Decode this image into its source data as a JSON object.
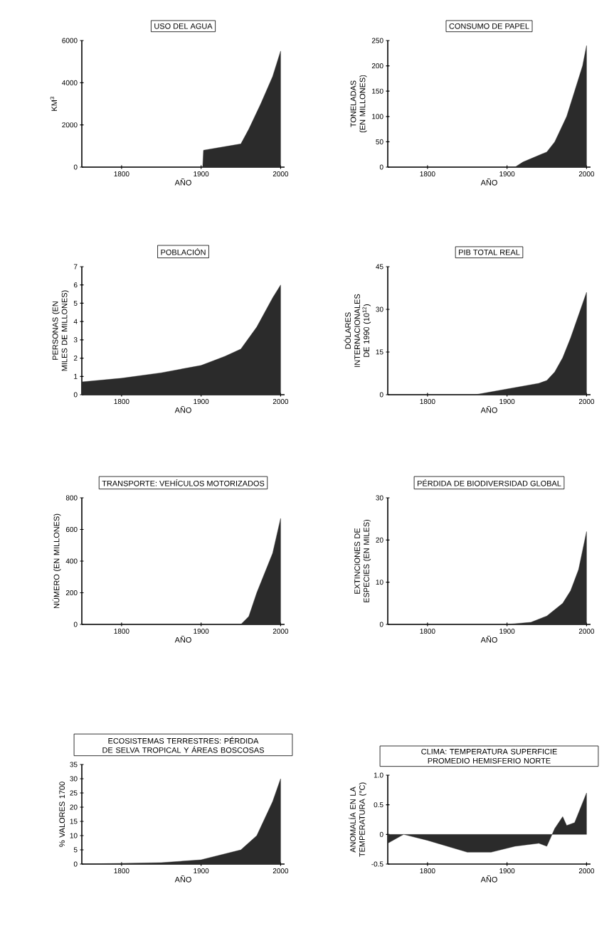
{
  "chart_data": [
    {
      "type": "area",
      "title": "USO DEL AGUA",
      "xlabel": "AÑO",
      "ylabel": "KM$^{3}$",
      "color": "#2b2b2b",
      "xlim": [
        1750,
        2005
      ],
      "ylim": [
        0,
        6000
      ],
      "xticks": [
        1800,
        1900,
        2000
      ],
      "yticks": [
        0,
        2000,
        4000,
        6000
      ],
      "x": [
        1750,
        1902,
        1903,
        1950,
        1960,
        1975,
        1990,
        2000
      ],
      "values": [
        0,
        0,
        800,
        1100,
        1800,
        3000,
        4300,
        5500
      ]
    },
    {
      "type": "area",
      "title": "CONSUMO DE PAPEL",
      "xlabel": "AÑO",
      "ylabel": "TONELADAS (EN MILLONES)",
      "color": "#2b2b2b",
      "xlim": [
        1750,
        2005
      ],
      "ylim": [
        0,
        250
      ],
      "xticks": [
        1800,
        1900,
        2000
      ],
      "yticks": [
        0,
        50,
        100,
        150,
        200,
        250
      ],
      "x": [
        1750,
        1910,
        1920,
        1950,
        1960,
        1975,
        1985,
        1995,
        2000
      ],
      "values": [
        0,
        0,
        10,
        30,
        50,
        100,
        150,
        200,
        240
      ]
    },
    {
      "type": "area",
      "title": "POBLACIÓN",
      "xlabel": "AÑO",
      "ylabel": "PERSONAS (EN MILES DE MILLONES)",
      "color": "#2b2b2b",
      "xlim": [
        1750,
        2005
      ],
      "ylim": [
        0,
        7
      ],
      "xticks": [
        1800,
        1900,
        2000
      ],
      "yticks": [
        0,
        1,
        2,
        3,
        4,
        5,
        6,
        7
      ],
      "x": [
        1750,
        1800,
        1850,
        1900,
        1930,
        1950,
        1970,
        1990,
        2000
      ],
      "values": [
        0.7,
        0.9,
        1.2,
        1.6,
        2.1,
        2.5,
        3.7,
        5.3,
        6.0
      ]
    },
    {
      "type": "area",
      "title": "PIB TOTAL REAL",
      "xlabel": "AÑO",
      "ylabel": "DÓLARES INTERNACIONALES DE 1990 (10$^{12}$)",
      "color": "#2b2b2b",
      "xlim": [
        1750,
        2005
      ],
      "ylim": [
        0,
        45
      ],
      "xticks": [
        1800,
        1900,
        2000
      ],
      "yticks": [
        0,
        15,
        30,
        45
      ],
      "x": [
        1750,
        1860,
        1880,
        1900,
        1940,
        1950,
        1960,
        1970,
        1980,
        1990,
        2000
      ],
      "values": [
        0,
        0,
        1,
        2,
        4,
        5,
        8,
        13,
        20,
        28,
        36
      ]
    },
    {
      "type": "area",
      "title": "TRANSPORTE: VEHÍCULOS MOTORIZADOS",
      "xlabel": "AÑO",
      "ylabel": "NÚMERO (EN MILLONES)",
      "color": "#2b2b2b",
      "xlim": [
        1750,
        2005
      ],
      "ylim": [
        0,
        800
      ],
      "xticks": [
        1800,
        1900,
        2000
      ],
      "yticks": [
        0,
        200,
        400,
        600,
        800
      ],
      "x": [
        1750,
        1950,
        1960,
        1970,
        1990,
        2000
      ],
      "values": [
        0,
        0,
        50,
        200,
        450,
        670
      ]
    },
    {
      "type": "area",
      "title": "PÉRDIDA DE BIODIVERSIDAD GLOBAL",
      "xlabel": "AÑO",
      "ylabel": "EXTINCIONES DE ESPECIES (EN MILES)",
      "color": "#2b2b2b",
      "xlim": [
        1750,
        2005
      ],
      "ylim": [
        0,
        30
      ],
      "xticks": [
        1800,
        1900,
        2000
      ],
      "yticks": [
        0,
        10,
        20,
        30
      ],
      "x": [
        1750,
        1900,
        1930,
        1950,
        1970,
        1980,
        1990,
        2000
      ],
      "values": [
        0,
        0,
        0.5,
        2,
        5,
        8,
        13,
        22
      ]
    },
    {
      "type": "area",
      "title": "ECOSISTEMAS TERRESTRES: PÉRDIDA DE SELVA TROPICAL Y ÁREAS BOSCOSAS",
      "xlabel": "AÑO",
      "ylabel": "% VALORES 1700",
      "color": "#2b2b2b",
      "xlim": [
        1750,
        2005
      ],
      "ylim": [
        0,
        35
      ],
      "xticks": [
        1800,
        1900,
        2000
      ],
      "yticks": [
        0,
        5,
        10,
        15,
        20,
        25,
        30,
        35
      ],
      "x": [
        1750,
        1850,
        1900,
        1950,
        1970,
        1990,
        2000
      ],
      "values": [
        0,
        0.5,
        1.5,
        5,
        10,
        22,
        30
      ]
    },
    {
      "type": "area",
      "title": "CLIMA: TEMPERATURA SUPERFICIE PROMEDIO HEMISFERIO NORTE",
      "xlabel": "AÑO",
      "ylabel": "ANOMALÍA EN LA TEMPERATURA (°C)",
      "color": "#2b2b2b",
      "xlim": [
        1750,
        2005
      ],
      "ylim": [
        -0.5,
        1.0
      ],
      "xticks": [
        1800,
        1900,
        2000
      ],
      "yticks": [
        {
          "value": -0.5,
          "label": "-0.5"
        },
        0,
        {
          "value": 0.5,
          "label": "0.5"
        },
        {
          "value": 1.0,
          "label": "1.0"
        }
      ],
      "x": [
        1750,
        1770,
        1800,
        1850,
        1880,
        1910,
        1940,
        1950,
        1960,
        1970,
        1975,
        1985,
        2000
      ],
      "values": [
        -0.15,
        0,
        -0.1,
        -0.3,
        -0.3,
        -0.2,
        -0.15,
        -0.2,
        0.1,
        0.3,
        0.15,
        0.2,
        0.7
      ]
    }
  ]
}
